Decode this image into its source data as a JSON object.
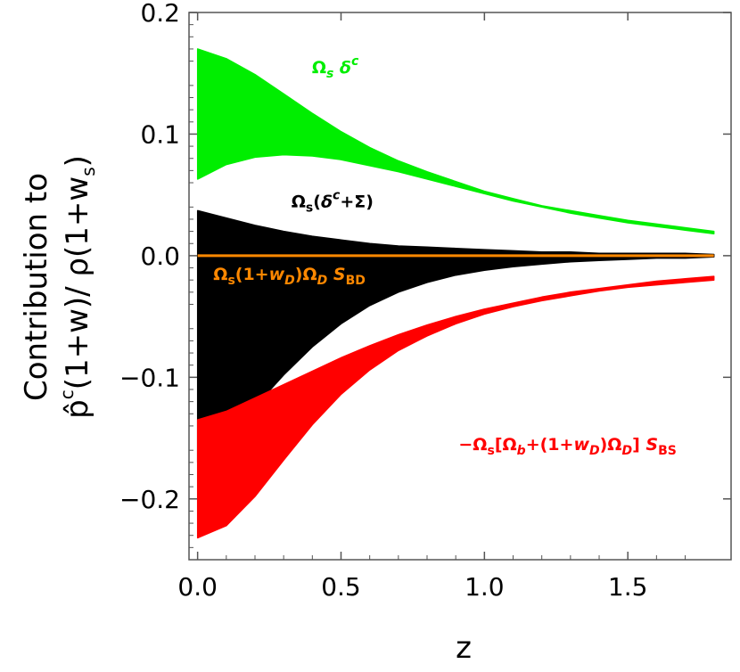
{
  "chart_data": {
    "type": "area",
    "title": "",
    "xlabel": "z",
    "ylabel_line1": "Contribution to",
    "ylabel_line2": {
      "p_hat": "p̂",
      "p_hat_sup": "c",
      "middle": "(1+w)/ ρ(1+w",
      "sub": "s",
      "end": ")"
    },
    "xlim": [
      -0.03,
      1.86
    ],
    "ylim": [
      -0.25,
      0.2
    ],
    "xticks": [
      0.0,
      0.5,
      1.0,
      1.5
    ],
    "xtick_labels": [
      "0.0",
      "0.5",
      "1.0",
      "1.5"
    ],
    "yticks": [
      -0.2,
      -0.1,
      0.0,
      0.1,
      0.2
    ],
    "ytick_labels": [
      "−0.2",
      "−0.1",
      "0.0",
      "0.1",
      "0.2"
    ],
    "grid": false,
    "legend": "none",
    "bands": [
      {
        "key": "green",
        "color": "#00ee00",
        "z": [
          0.0,
          0.1,
          0.2,
          0.3,
          0.4,
          0.5,
          0.6,
          0.7,
          0.8,
          0.9,
          1.0,
          1.1,
          1.2,
          1.3,
          1.4,
          1.5,
          1.6,
          1.7,
          1.8
        ],
        "upper": [
          0.17,
          0.162,
          0.149,
          0.133,
          0.117,
          0.102,
          0.089,
          0.078,
          0.069,
          0.061,
          0.053,
          0.047,
          0.041,
          0.037,
          0.033,
          0.029,
          0.026,
          0.023,
          0.02
        ],
        "lower": [
          0.063,
          0.075,
          0.081,
          0.083,
          0.082,
          0.079,
          0.074,
          0.069,
          0.063,
          0.057,
          0.051,
          0.045,
          0.04,
          0.035,
          0.031,
          0.027,
          0.024,
          0.021,
          0.018
        ]
      },
      {
        "key": "black",
        "color": "#000000",
        "z": [
          0.0,
          0.1,
          0.2,
          0.3,
          0.4,
          0.5,
          0.6,
          0.7,
          0.8,
          0.9,
          1.0,
          1.1,
          1.2,
          1.3,
          1.4,
          1.5,
          1.6,
          1.7,
          1.8
        ],
        "upper": [
          0.037,
          0.031,
          0.025,
          0.02,
          0.016,
          0.013,
          0.01,
          0.008,
          0.007,
          0.006,
          0.005,
          0.004,
          0.003,
          0.003,
          0.002,
          0.002,
          0.002,
          0.002,
          0.001
        ],
        "lower": [
          -0.17,
          -0.149,
          -0.124,
          -0.098,
          -0.075,
          -0.056,
          -0.041,
          -0.03,
          -0.022,
          -0.016,
          -0.012,
          -0.009,
          -0.007,
          -0.005,
          -0.004,
          -0.003,
          -0.002,
          -0.002,
          -0.001
        ]
      },
      {
        "key": "red",
        "color": "#ff0000",
        "z": [
          0.0,
          0.1,
          0.2,
          0.3,
          0.4,
          0.5,
          0.6,
          0.7,
          0.8,
          0.9,
          1.0,
          1.1,
          1.2,
          1.3,
          1.4,
          1.5,
          1.6,
          1.7,
          1.8
        ],
        "upper": [
          -0.135,
          -0.128,
          -0.117,
          -0.106,
          -0.095,
          -0.084,
          -0.074,
          -0.065,
          -0.057,
          -0.05,
          -0.044,
          -0.039,
          -0.034,
          -0.03,
          -0.027,
          -0.024,
          -0.021,
          -0.019,
          -0.017
        ],
        "lower": [
          -0.232,
          -0.222,
          -0.198,
          -0.168,
          -0.139,
          -0.114,
          -0.094,
          -0.078,
          -0.066,
          -0.056,
          -0.048,
          -0.042,
          -0.037,
          -0.033,
          -0.029,
          -0.026,
          -0.024,
          -0.022,
          -0.02
        ]
      }
    ],
    "lines": [
      {
        "key": "orange",
        "color": "#ff8800",
        "z": [
          0.0,
          1.8
        ],
        "y": [
          0.0,
          0.0
        ]
      }
    ],
    "annotations": [
      {
        "key": "green",
        "color": "#00ee00",
        "x": 0.48,
        "y": 0.15
      },
      {
        "key": "black",
        "color": "#000000",
        "x": 0.47,
        "y": 0.04
      },
      {
        "key": "orange",
        "color": "#ff8800",
        "x": 0.32,
        "y": -0.02
      },
      {
        "key": "red",
        "color": "#ff0000",
        "x": 1.29,
        "y": -0.16
      }
    ]
  }
}
